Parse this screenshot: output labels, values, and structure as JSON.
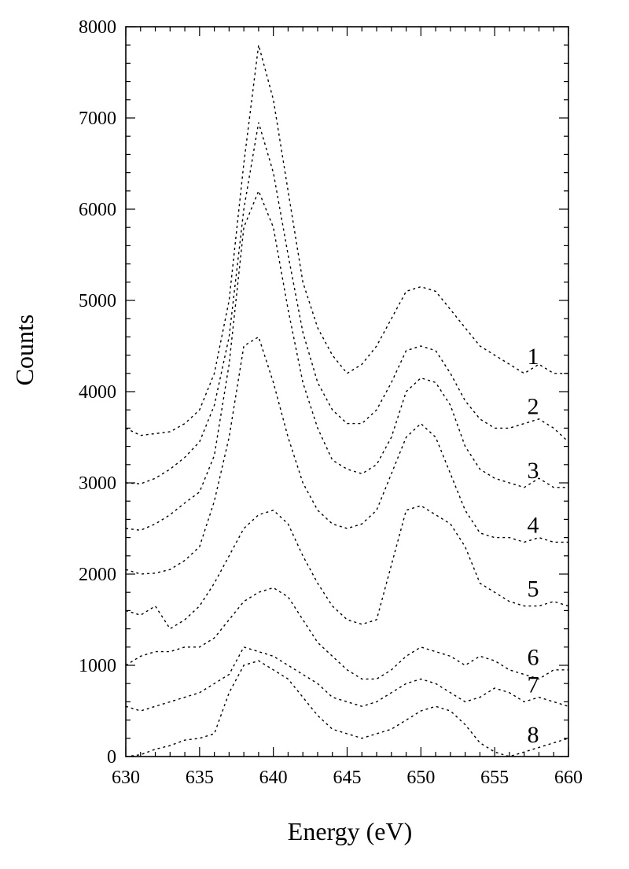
{
  "chart_data": {
    "type": "line",
    "title": "",
    "xlabel": "Energy (eV)",
    "ylabel": "Counts",
    "xlim": [
      630,
      660
    ],
    "ylim": [
      0,
      8000
    ],
    "x_ticks": [
      630,
      635,
      640,
      645,
      650,
      655,
      660
    ],
    "y_ticks": [
      0,
      1000,
      2000,
      3000,
      4000,
      5000,
      6000,
      7000,
      8000
    ],
    "grid": false,
    "legend": "none",
    "line_style": "dotted",
    "series": [
      {
        "name": "1",
        "points": [
          [
            630,
            3600
          ],
          [
            631,
            3520
          ],
          [
            632,
            3540
          ],
          [
            633,
            3560
          ],
          [
            634,
            3650
          ],
          [
            635,
            3800
          ],
          [
            636,
            4200
          ],
          [
            637,
            5000
          ],
          [
            638,
            6500
          ],
          [
            639,
            7800
          ],
          [
            640,
            7200
          ],
          [
            641,
            6200
          ],
          [
            642,
            5200
          ],
          [
            643,
            4700
          ],
          [
            644,
            4400
          ],
          [
            645,
            4200
          ],
          [
            646,
            4300
          ],
          [
            647,
            4500
          ],
          [
            648,
            4800
          ],
          [
            649,
            5100
          ],
          [
            650,
            5150
          ],
          [
            651,
            5100
          ],
          [
            652,
            4900
          ],
          [
            653,
            4700
          ],
          [
            654,
            4500
          ],
          [
            655,
            4400
          ],
          [
            656,
            4300
          ],
          [
            657,
            4200
          ],
          [
            658,
            4300
          ],
          [
            659,
            4200
          ],
          [
            660,
            4200
          ]
        ]
      },
      {
        "name": "2",
        "points": [
          [
            630,
            3000
          ],
          [
            631,
            2990
          ],
          [
            632,
            3050
          ],
          [
            633,
            3150
          ],
          [
            634,
            3280
          ],
          [
            635,
            3450
          ],
          [
            636,
            3850
          ],
          [
            637,
            4600
          ],
          [
            638,
            6000
          ],
          [
            639,
            6950
          ],
          [
            640,
            6400
          ],
          [
            641,
            5500
          ],
          [
            642,
            4650
          ],
          [
            643,
            4100
          ],
          [
            644,
            3800
          ],
          [
            645,
            3650
          ],
          [
            646,
            3650
          ],
          [
            647,
            3800
          ],
          [
            648,
            4100
          ],
          [
            649,
            4450
          ],
          [
            650,
            4500
          ],
          [
            651,
            4450
          ],
          [
            652,
            4200
          ],
          [
            653,
            3900
          ],
          [
            654,
            3700
          ],
          [
            655,
            3600
          ],
          [
            656,
            3600
          ],
          [
            657,
            3650
          ],
          [
            658,
            3700
          ],
          [
            659,
            3600
          ],
          [
            660,
            3450
          ]
        ]
      },
      {
        "name": "3",
        "points": [
          [
            630,
            2500
          ],
          [
            631,
            2480
          ],
          [
            632,
            2550
          ],
          [
            633,
            2650
          ],
          [
            634,
            2780
          ],
          [
            635,
            2900
          ],
          [
            636,
            3300
          ],
          [
            637,
            4300
          ],
          [
            638,
            5800
          ],
          [
            639,
            6200
          ],
          [
            640,
            5800
          ],
          [
            641,
            4900
          ],
          [
            642,
            4100
          ],
          [
            643,
            3600
          ],
          [
            644,
            3250
          ],
          [
            645,
            3150
          ],
          [
            646,
            3100
          ],
          [
            647,
            3200
          ],
          [
            648,
            3500
          ],
          [
            649,
            4000
          ],
          [
            650,
            4150
          ],
          [
            651,
            4100
          ],
          [
            652,
            3850
          ],
          [
            653,
            3400
          ],
          [
            654,
            3150
          ],
          [
            655,
            3050
          ],
          [
            656,
            3000
          ],
          [
            657,
            2950
          ],
          [
            658,
            3050
          ],
          [
            659,
            2950
          ],
          [
            660,
            2950
          ]
        ]
      },
      {
        "name": "4",
        "points": [
          [
            630,
            2050
          ],
          [
            631,
            2000
          ],
          [
            632,
            2010
          ],
          [
            633,
            2050
          ],
          [
            634,
            2150
          ],
          [
            635,
            2300
          ],
          [
            636,
            2800
          ],
          [
            637,
            3500
          ],
          [
            638,
            4500
          ],
          [
            639,
            4600
          ],
          [
            640,
            4100
          ],
          [
            641,
            3500
          ],
          [
            642,
            3000
          ],
          [
            643,
            2700
          ],
          [
            644,
            2550
          ],
          [
            645,
            2500
          ],
          [
            646,
            2550
          ],
          [
            647,
            2700
          ],
          [
            648,
            3100
          ],
          [
            649,
            3500
          ],
          [
            650,
            3650
          ],
          [
            651,
            3500
          ],
          [
            652,
            3100
          ],
          [
            653,
            2700
          ],
          [
            654,
            2450
          ],
          [
            655,
            2400
          ],
          [
            656,
            2400
          ],
          [
            657,
            2350
          ],
          [
            658,
            2400
          ],
          [
            659,
            2350
          ],
          [
            660,
            2350
          ]
        ]
      },
      {
        "name": "5",
        "points": [
          [
            630,
            1600
          ],
          [
            631,
            1550
          ],
          [
            632,
            1650
          ],
          [
            633,
            1400
          ],
          [
            634,
            1500
          ],
          [
            635,
            1650
          ],
          [
            636,
            1900
          ],
          [
            637,
            2200
          ],
          [
            638,
            2500
          ],
          [
            639,
            2650
          ],
          [
            640,
            2700
          ],
          [
            641,
            2550
          ],
          [
            642,
            2200
          ],
          [
            643,
            1900
          ],
          [
            644,
            1650
          ],
          [
            645,
            1500
          ],
          [
            646,
            1450
          ],
          [
            647,
            1500
          ],
          [
            648,
            2100
          ],
          [
            649,
            2700
          ],
          [
            650,
            2750
          ],
          [
            651,
            2650
          ],
          [
            652,
            2550
          ],
          [
            653,
            2300
          ],
          [
            654,
            1900
          ],
          [
            655,
            1800
          ],
          [
            656,
            1700
          ],
          [
            657,
            1650
          ],
          [
            658,
            1650
          ],
          [
            659,
            1700
          ],
          [
            660,
            1650
          ]
        ]
      },
      {
        "name": "6",
        "points": [
          [
            630,
            1000
          ],
          [
            631,
            1100
          ],
          [
            632,
            1150
          ],
          [
            633,
            1150
          ],
          [
            634,
            1200
          ],
          [
            635,
            1200
          ],
          [
            636,
            1300
          ],
          [
            637,
            1500
          ],
          [
            638,
            1700
          ],
          [
            639,
            1800
          ],
          [
            640,
            1850
          ],
          [
            641,
            1750
          ],
          [
            642,
            1500
          ],
          [
            643,
            1250
          ],
          [
            644,
            1100
          ],
          [
            645,
            950
          ],
          [
            646,
            850
          ],
          [
            647,
            850
          ],
          [
            648,
            950
          ],
          [
            649,
            1100
          ],
          [
            650,
            1200
          ],
          [
            651,
            1150
          ],
          [
            652,
            1100
          ],
          [
            653,
            1000
          ],
          [
            654,
            1100
          ],
          [
            655,
            1050
          ],
          [
            656,
            950
          ],
          [
            657,
            900
          ],
          [
            658,
            850
          ],
          [
            659,
            950
          ],
          [
            660,
            950
          ]
        ]
      },
      {
        "name": "7",
        "points": [
          [
            630,
            550
          ],
          [
            631,
            500
          ],
          [
            632,
            550
          ],
          [
            633,
            600
          ],
          [
            634,
            650
          ],
          [
            635,
            700
          ],
          [
            636,
            800
          ],
          [
            637,
            900
          ],
          [
            638,
            1200
          ],
          [
            639,
            1150
          ],
          [
            640,
            1100
          ],
          [
            641,
            1000
          ],
          [
            642,
            900
          ],
          [
            643,
            800
          ],
          [
            644,
            650
          ],
          [
            645,
            600
          ],
          [
            646,
            550
          ],
          [
            647,
            600
          ],
          [
            648,
            700
          ],
          [
            649,
            800
          ],
          [
            650,
            850
          ],
          [
            651,
            800
          ],
          [
            652,
            700
          ],
          [
            653,
            600
          ],
          [
            654,
            650
          ],
          [
            655,
            750
          ],
          [
            656,
            700
          ],
          [
            657,
            600
          ],
          [
            658,
            650
          ],
          [
            659,
            600
          ],
          [
            660,
            550
          ]
        ]
      },
      {
        "name": "8",
        "points": [
          [
            630,
            0
          ],
          [
            631,
            20
          ],
          [
            632,
            80
          ],
          [
            633,
            120
          ],
          [
            634,
            180
          ],
          [
            635,
            200
          ],
          [
            636,
            250
          ],
          [
            637,
            700
          ],
          [
            638,
            1000
          ],
          [
            639,
            1050
          ],
          [
            640,
            950
          ],
          [
            641,
            850
          ],
          [
            642,
            650
          ],
          [
            643,
            450
          ],
          [
            644,
            300
          ],
          [
            645,
            250
          ],
          [
            646,
            200
          ],
          [
            647,
            250
          ],
          [
            648,
            300
          ],
          [
            649,
            400
          ],
          [
            650,
            500
          ],
          [
            651,
            550
          ],
          [
            652,
            500
          ],
          [
            653,
            350
          ],
          [
            654,
            150
          ],
          [
            655,
            50
          ],
          [
            656,
            0
          ],
          [
            657,
            50
          ],
          [
            658,
            100
          ],
          [
            659,
            150
          ],
          [
            660,
            200
          ]
        ]
      }
    ]
  }
}
